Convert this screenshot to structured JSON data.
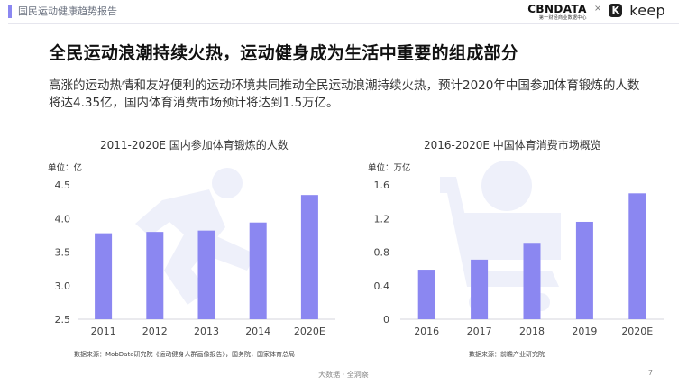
{
  "header": {
    "title": "国民运动健康趋势报告",
    "brand_main": "CBNDATA",
    "brand_sub": "第一财经商业数据中心",
    "times": "×",
    "keep_icon": "K",
    "keep_word": "keep"
  },
  "main_title": "全民运动浪潮持续火热，运动健身成为生活中重要的组成部分",
  "summary": "高涨的运动热情和友好便利的运动环境共同推动全民运动浪潮持续火热，预计2020年中国参加体育锻炼的人数将达4.35亿，国内体育消费市场预计将达到1.5万亿。",
  "footer": {
    "center": "大数据 · 全洞察",
    "page": "7"
  },
  "colors": {
    "bar": "#8b87f1",
    "watermark": "#eef0fa"
  },
  "charts": [
    {
      "title": "2011-2020E 国内参加体育锻炼的人数",
      "unit": "单位：亿",
      "source": "数据来源：MobData研究院《运动健身人群画像报告》，国务院，国家体育总局"
    },
    {
      "title": "2016-2020E 中国体育消费市场概览",
      "unit": "单位：万亿",
      "source": "数据来源：前瞻产业研究院"
    }
  ],
  "chart_data": [
    {
      "type": "bar",
      "title": "2011-2020E 国内参加体育锻炼的人数",
      "ylabel": "单位：亿",
      "categories": [
        "2011",
        "2012",
        "2013",
        "2014",
        "2020E"
      ],
      "values": [
        3.78,
        3.8,
        3.82,
        3.94,
        4.35
      ],
      "ylim": [
        2.5,
        4.5
      ],
      "yticks": [
        "2.5",
        "3.0",
        "3.5",
        "4.0",
        "4.5"
      ],
      "grid": false
    },
    {
      "type": "bar",
      "title": "2016-2020E 中国体育消费市场概览",
      "ylabel": "单位：万亿",
      "categories": [
        "2016",
        "2017",
        "2018",
        "2019",
        "2020E"
      ],
      "values": [
        0.59,
        0.71,
        0.91,
        1.16,
        1.5
      ],
      "ylim": [
        0,
        1.6
      ],
      "yticks": [
        "0",
        "0.4",
        "0.8",
        "1.2",
        "1.6"
      ],
      "grid": false
    }
  ]
}
